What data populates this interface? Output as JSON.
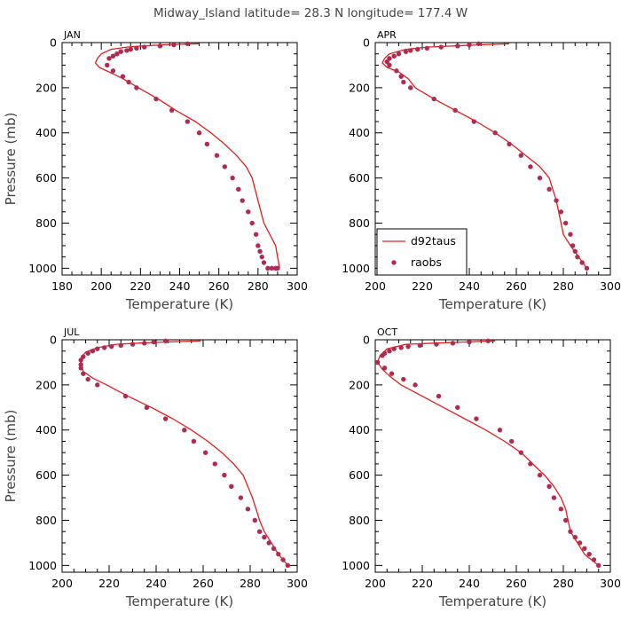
{
  "figure_title": "Midway_Island  latitude= 28.3 N longitude= 177.4 W",
  "colors": {
    "model": "#e0201c",
    "obs": "#b02a52",
    "axis": "#000000"
  },
  "legend": {
    "placement": "bottom-left of APR panel",
    "entries": [
      "d92taus",
      "raobs"
    ]
  },
  "chart_data": [
    {
      "type": "line+scatter",
      "title": "JAN",
      "xlabel": "Temperature (K)",
      "ylabel": "Pressure (mb)",
      "xlim": [
        180,
        300
      ],
      "ylim": [
        1030,
        0
      ],
      "xticks": [
        180,
        200,
        220,
        240,
        260,
        280,
        300
      ],
      "yticks": [
        0,
        200,
        400,
        600,
        800,
        1000
      ],
      "series": [
        {
          "name": "d92taus",
          "kind": "line",
          "x": [
            250,
            232,
            221,
            213,
            205,
            200,
            198,
            197,
            199,
            204,
            211,
            219,
            229,
            238,
            248,
            256,
            263,
            269,
            274,
            277,
            280,
            283,
            286,
            289,
            291
          ],
          "y": [
            5,
            10,
            15,
            20,
            30,
            50,
            70,
            90,
            110,
            130,
            160,
            200,
            250,
            300,
            350,
            400,
            450,
            500,
            550,
            600,
            700,
            800,
            850,
            900,
            1000
          ]
        },
        {
          "name": "raobs",
          "kind": "scatter",
          "x": [
            244,
            237,
            230,
            222,
            218,
            215,
            213,
            210,
            208,
            206,
            204,
            203,
            206,
            211,
            214,
            218,
            228,
            236,
            244,
            250,
            254,
            259,
            263,
            267,
            270,
            272,
            275,
            277,
            279,
            280,
            281,
            282,
            283,
            285,
            287,
            289,
            290
          ],
          "y": [
            5,
            10,
            15,
            20,
            25,
            30,
            35,
            40,
            50,
            60,
            70,
            100,
            125,
            150,
            175,
            200,
            250,
            300,
            350,
            400,
            450,
            500,
            550,
            600,
            650,
            700,
            750,
            800,
            850,
            900,
            925,
            950,
            975,
            1000,
            1000,
            1000,
            1000
          ]
        }
      ]
    },
    {
      "type": "line+scatter",
      "title": "APR",
      "xlabel": "Temperature (K)",
      "ylabel": "",
      "xlim": [
        200,
        300
      ],
      "ylim": [
        1030,
        0
      ],
      "xticks": [
        200,
        220,
        240,
        260,
        280,
        300
      ],
      "yticks": [
        0,
        200,
        400,
        600,
        800,
        1000
      ],
      "series": [
        {
          "name": "d92taus",
          "kind": "line",
          "x": [
            257,
            245,
            233,
            222,
            213,
            206,
            204,
            203,
            205,
            210,
            214,
            217,
            225,
            234,
            243,
            251,
            258,
            264,
            270,
            274,
            277,
            279,
            280,
            283,
            290
          ],
          "y": [
            5,
            10,
            15,
            20,
            30,
            50,
            70,
            90,
            110,
            130,
            160,
            200,
            250,
            300,
            350,
            400,
            450,
            500,
            550,
            600,
            700,
            800,
            850,
            900,
            1000
          ]
        },
        {
          "name": "raobs",
          "kind": "scatter",
          "x": [
            244,
            240,
            235,
            228,
            222,
            218,
            215,
            213,
            210,
            208,
            206,
            205,
            206,
            209,
            211,
            212,
            215,
            225,
            234,
            242,
            251,
            257,
            262,
            266,
            270,
            274,
            277,
            279,
            281,
            283,
            284,
            285,
            286,
            288,
            290
          ],
          "y": [
            5,
            10,
            15,
            20,
            25,
            30,
            35,
            40,
            50,
            60,
            70,
            85,
            100,
            125,
            150,
            175,
            200,
            250,
            300,
            350,
            400,
            450,
            500,
            550,
            600,
            650,
            700,
            750,
            800,
            850,
            900,
            925,
            950,
            975,
            1000
          ]
        }
      ]
    },
    {
      "type": "line+scatter",
      "title": "JUL",
      "xlabel": "Temperature (K)",
      "ylabel": "Pressure (mb)",
      "xlim": [
        200,
        300
      ],
      "ylim": [
        1030,
        0
      ],
      "xticks": [
        200,
        220,
        240,
        260,
        280,
        300
      ],
      "yticks": [
        0,
        200,
        400,
        600,
        800,
        1000
      ],
      "series": [
        {
          "name": "d92taus",
          "kind": "line",
          "x": [
            259,
            244,
            232,
            223,
            215,
            210,
            208,
            208,
            209,
            213,
            219,
            228,
            238,
            247,
            255,
            262,
            268,
            273,
            277,
            281,
            284,
            286,
            289,
            292,
            296
          ],
          "y": [
            5,
            10,
            15,
            20,
            35,
            55,
            80,
            110,
            140,
            170,
            200,
            250,
            300,
            350,
            400,
            450,
            500,
            550,
            600,
            700,
            800,
            850,
            900,
            950,
            1000
          ]
        },
        {
          "name": "raobs",
          "kind": "scatter",
          "x": [
            244,
            239,
            235,
            230,
            225,
            221,
            218,
            215,
            213,
            211,
            209,
            208,
            208,
            208,
            209,
            211,
            215,
            227,
            236,
            244,
            252,
            256,
            261,
            265,
            269,
            272,
            276,
            279,
            282,
            284,
            286,
            288,
            290,
            292,
            294,
            296
          ],
          "y": [
            5,
            10,
            15,
            20,
            25,
            30,
            35,
            40,
            50,
            60,
            75,
            90,
            110,
            125,
            150,
            175,
            200,
            250,
            300,
            350,
            400,
            450,
            500,
            550,
            600,
            650,
            700,
            750,
            800,
            850,
            875,
            900,
            925,
            950,
            975,
            1000
          ]
        }
      ]
    },
    {
      "type": "line+scatter",
      "title": "OCT",
      "xlabel": "Temperature (K)",
      "ylabel": "",
      "xlim": [
        200,
        300
      ],
      "ylim": [
        1030,
        0
      ],
      "xticks": [
        200,
        220,
        240,
        260,
        280,
        300
      ],
      "yticks": [
        0,
        200,
        400,
        600,
        800,
        1000
      ],
      "series": [
        {
          "name": "d92taus",
          "kind": "line",
          "x": [
            251,
            238,
            225,
            213,
            205,
            202,
            201,
            203,
            206,
            211,
            220,
            229,
            238,
            247,
            255,
            262,
            267,
            272,
            276,
            279,
            281,
            282,
            283,
            286,
            289,
            295
          ],
          "y": [
            5,
            10,
            15,
            20,
            40,
            70,
            100,
            130,
            160,
            200,
            250,
            300,
            350,
            400,
            450,
            500,
            550,
            600,
            650,
            700,
            750,
            800,
            850,
            900,
            950,
            1000
          ]
        },
        {
          "name": "raobs",
          "kind": "scatter",
          "x": [
            248,
            240,
            233,
            226,
            219,
            214,
            211,
            208,
            206,
            204,
            203,
            201,
            204,
            207,
            212,
            217,
            227,
            235,
            243,
            253,
            258,
            262,
            266,
            270,
            274,
            276,
            279,
            281,
            283,
            285,
            287,
            289,
            291,
            293,
            295
          ],
          "y": [
            5,
            10,
            15,
            20,
            25,
            30,
            35,
            40,
            50,
            60,
            70,
            100,
            125,
            150,
            175,
            200,
            250,
            300,
            350,
            400,
            450,
            500,
            550,
            600,
            650,
            700,
            750,
            800,
            850,
            875,
            900,
            925,
            950,
            975,
            1000
          ]
        }
      ]
    }
  ]
}
